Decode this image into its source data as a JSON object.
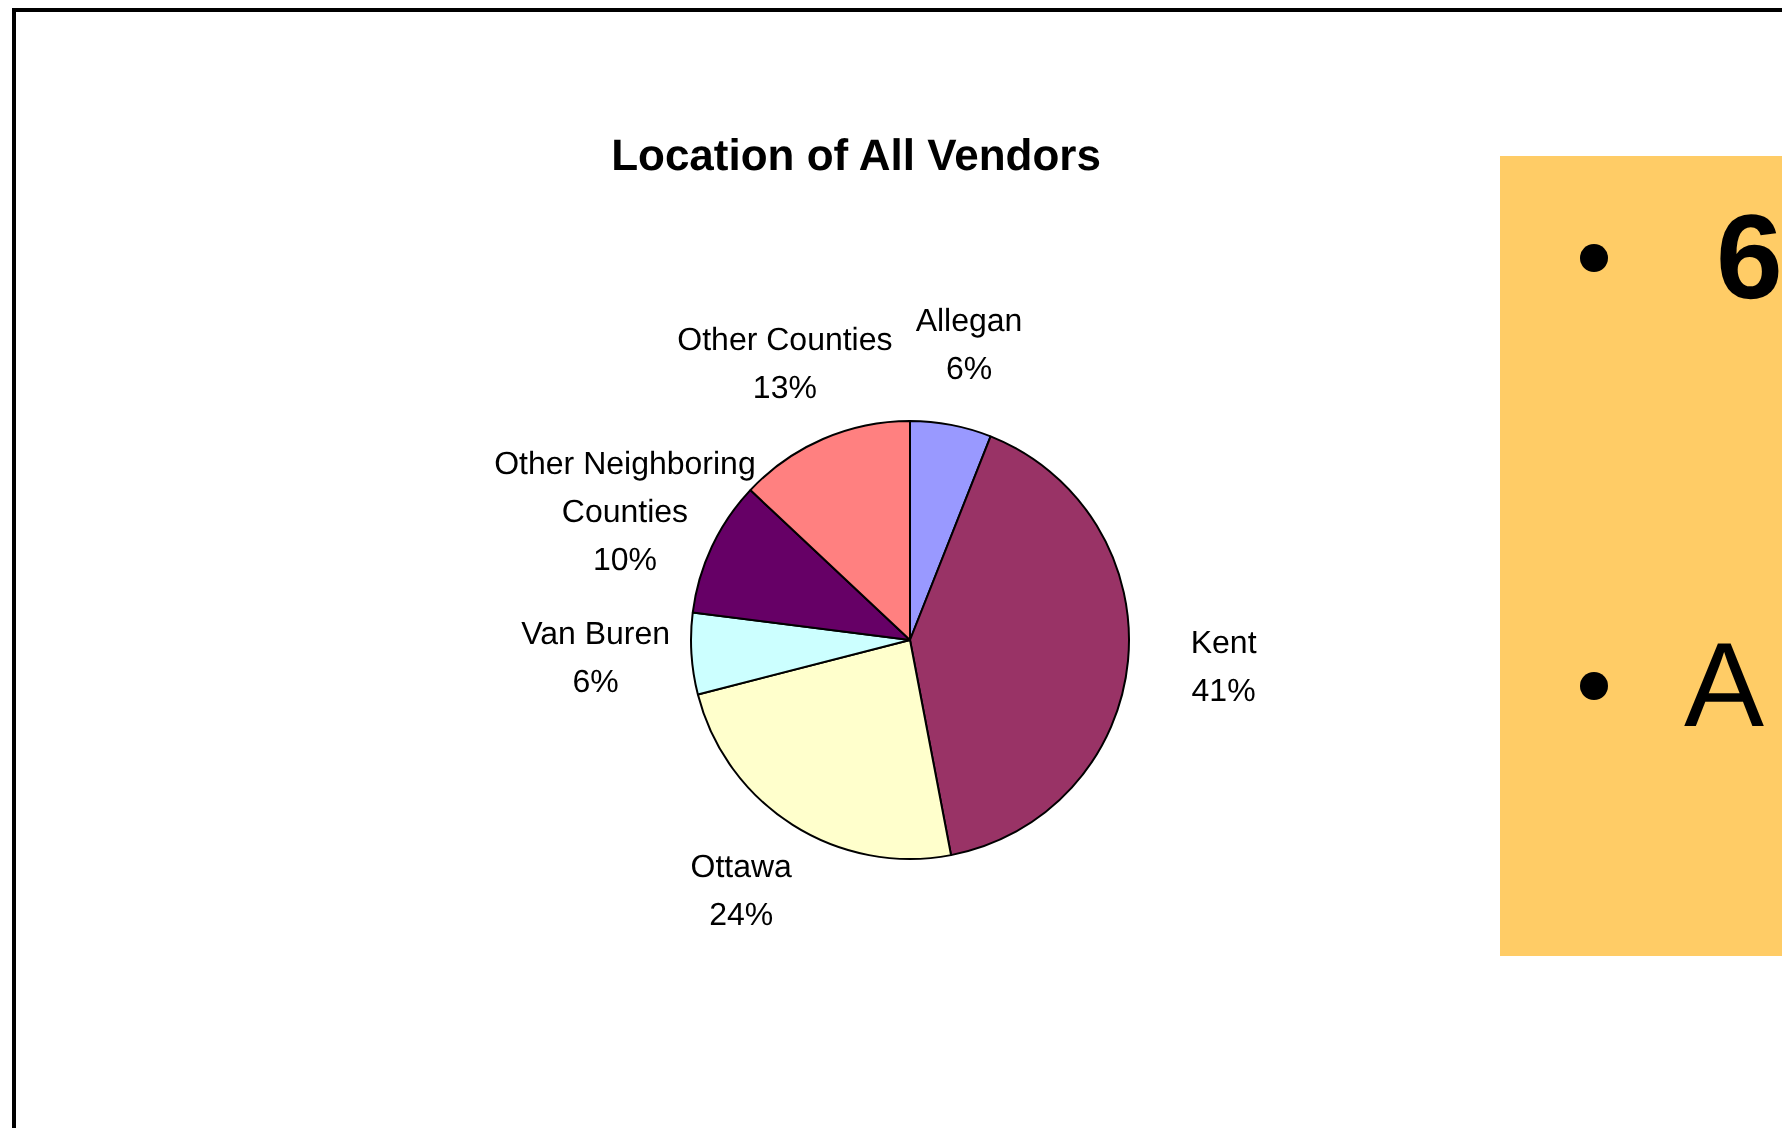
{
  "chart_data": {
    "type": "pie",
    "title": "Location of All Vendors",
    "categories": [
      "Allegan",
      "Kent",
      "Ottawa",
      "Van Buren",
      "Other Neighboring Counties",
      "Other Counties"
    ],
    "values": [
      6,
      41,
      24,
      6,
      10,
      13
    ],
    "colors": [
      "#9999ff",
      "#993366",
      "#ffffcc",
      "#ccffff",
      "#660066",
      "#ff8080"
    ],
    "value_labels": [
      "6%",
      "41%",
      "24%",
      "6%",
      "10%",
      "13%"
    ],
    "legend": false,
    "annotations": [
      "6",
      "A"
    ]
  }
}
